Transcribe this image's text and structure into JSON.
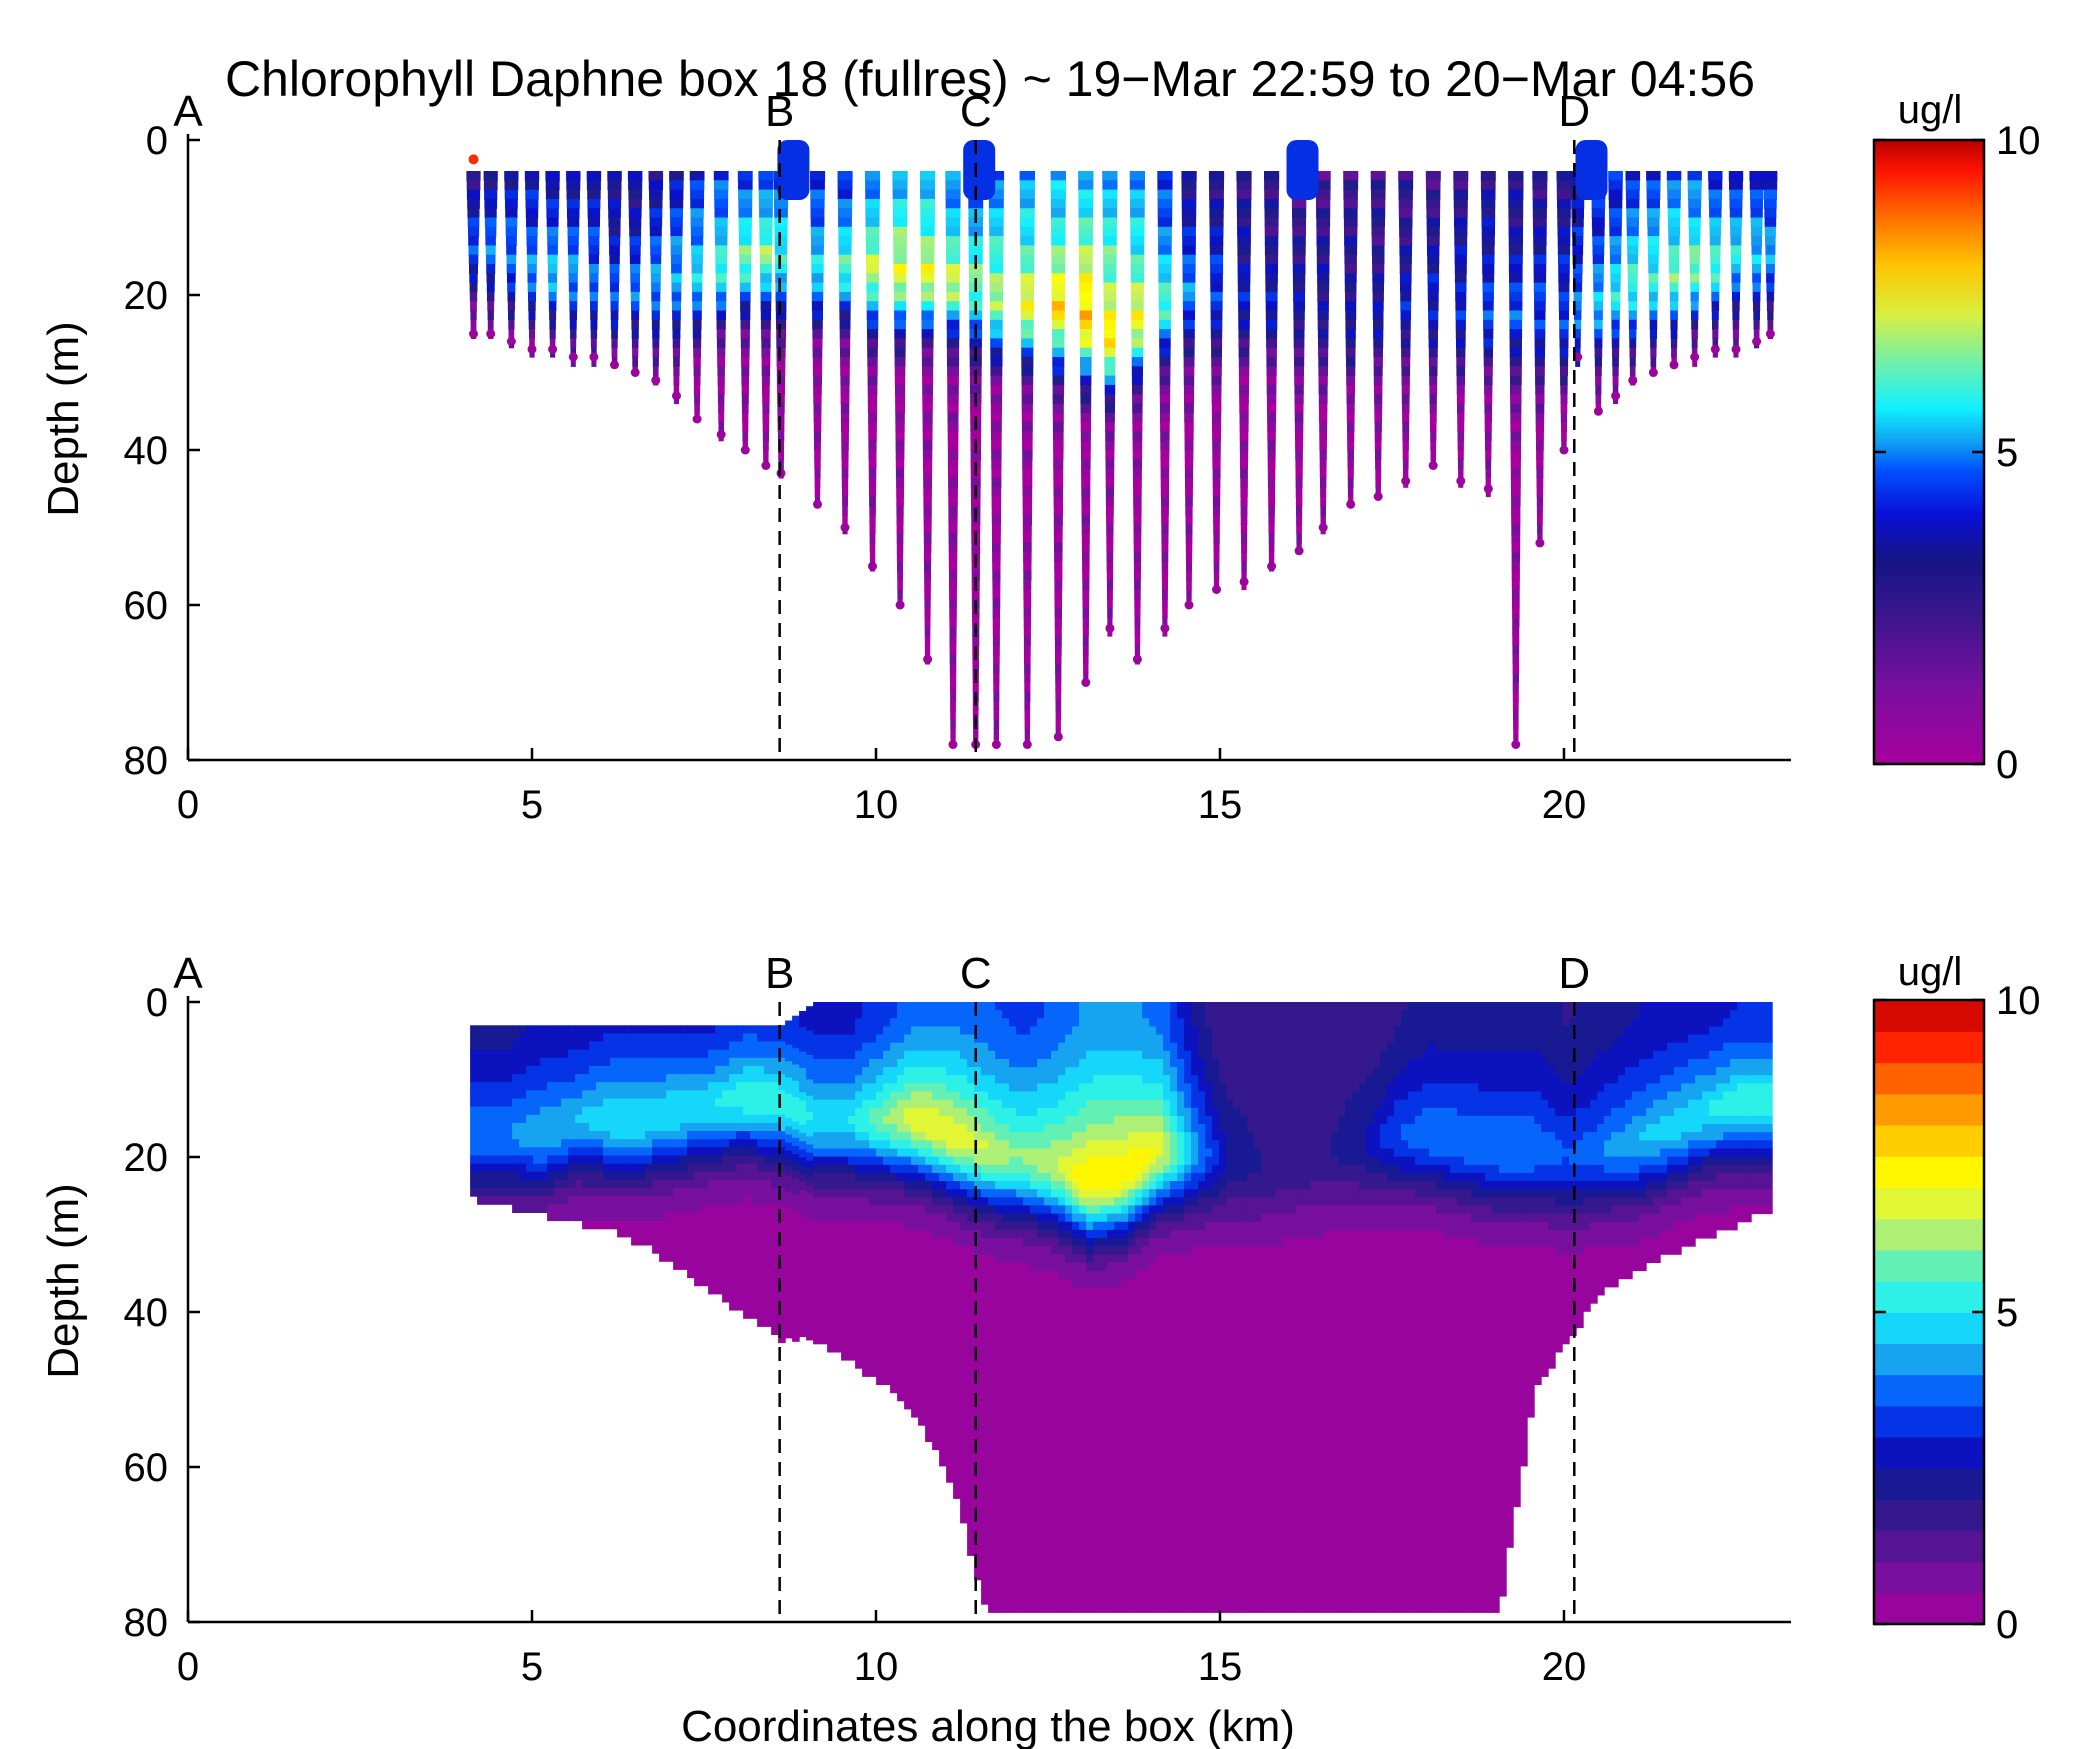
{
  "title": "Chlorophyll Daphne box 18 (fullres) ~ 19−Mar 22:59 to 20−Mar 04:56",
  "xlabel": "Coordinates along the box (km)",
  "ylabel": "Depth (m)",
  "colorbar_label": "ug/l",
  "colormap": [
    "#a8009c",
    "#7a0fa0",
    "#4a148f",
    "#1c1c8a",
    "#0a10c8",
    "#0050ff",
    "#17a8f0",
    "#12f0ff",
    "#5ef0b8",
    "#c8f060",
    "#ffff00",
    "#ffc400",
    "#ff7a00",
    "#ff1e00",
    "#c00000"
  ],
  "x_ticks": [
    "0",
    "5",
    "10",
    "15",
    "20"
  ],
  "y_ticks": [
    "0",
    "20",
    "40",
    "60",
    "80"
  ],
  "cbar_ticks": [
    "10",
    "5",
    "0"
  ],
  "markers": [
    {
      "label": "A",
      "x": 0
    },
    {
      "label": "B",
      "x": 8.6
    },
    {
      "label": "C",
      "x": 11.45
    },
    {
      "label": "D",
      "x": 20.15
    }
  ],
  "chart_data": [
    {
      "type": "scatter",
      "panel": "top",
      "description": "full-resolution glider profiles colored by chlorophyll",
      "xlim": [
        0,
        23.3
      ],
      "ylim": [
        0,
        80
      ],
      "y_reversed": true,
      "clim": [
        0,
        10
      ],
      "colorbar_ticks": [
        0,
        5,
        10
      ],
      "surface_bumps_km": [
        8.8,
        11.5,
        16.2,
        20.4
      ],
      "x_km": [
        4.15,
        4.4,
        4.7,
        5.0,
        5.3,
        5.6,
        5.9,
        6.2,
        6.5,
        6.8,
        7.1,
        7.4,
        7.75,
        8.1,
        8.4,
        8.62,
        9.15,
        9.55,
        9.95,
        10.35,
        10.75,
        11.12,
        11.45,
        11.75,
        12.2,
        12.65,
        13.05,
        13.4,
        13.8,
        14.2,
        14.55,
        14.95,
        15.35,
        15.75,
        16.15,
        16.5,
        16.9,
        17.3,
        17.7,
        18.1,
        18.5,
        18.9,
        19.3,
        19.65,
        20.0,
        20.2,
        20.5,
        20.75,
        21.0,
        21.3,
        21.6,
        21.9,
        22.2,
        22.5,
        22.8,
        23.0
      ],
      "max_depth_m": [
        25,
        25,
        26,
        27,
        27,
        28,
        28,
        29,
        30,
        31,
        33,
        36,
        38,
        40,
        42,
        43,
        47,
        50,
        55,
        60,
        67,
        78,
        78,
        78,
        78,
        77,
        70,
        63,
        67,
        63,
        60,
        58,
        57,
        55,
        53,
        50,
        47,
        46,
        44,
        42,
        44,
        45,
        78,
        52,
        40,
        28,
        35,
        33,
        31,
        30,
        29,
        28,
        27,
        27,
        26,
        25
      ],
      "chl_max_depth_m": [
        12,
        13,
        14,
        15,
        16,
        17,
        17,
        18,
        18,
        18,
        17,
        16,
        15,
        14,
        14,
        14,
        15,
        15,
        16,
        16,
        16,
        17,
        18,
        19,
        20,
        21,
        22,
        24,
        22,
        20,
        19,
        19,
        19,
        20,
        21,
        21,
        22,
        22,
        21,
        21,
        21,
        21,
        22,
        22,
        22,
        21,
        20,
        19,
        18,
        17,
        16,
        15,
        15,
        14,
        14,
        13
      ],
      "chl_max_ugl": [
        3.5,
        3.8,
        4.0,
        4.2,
        4.5,
        4.2,
        4.0,
        3.6,
        3.8,
        4.2,
        4.5,
        5.0,
        5.5,
        5.8,
        6.0,
        5.5,
        5.0,
        5.5,
        6.5,
        7.0,
        7.0,
        6.5,
        6.0,
        6.5,
        7.0,
        7.5,
        8.0,
        7.5,
        7.0,
        5.5,
        4.0,
        3.5,
        3.0,
        2.8,
        2.5,
        2.5,
        2.5,
        2.5,
        2.8,
        3.0,
        3.2,
        3.5,
        3.5,
        3.5,
        3.5,
        4.0,
        4.5,
        5.0,
        5.5,
        5.5,
        6.0,
        6.0,
        5.5,
        5.0,
        4.8,
        4.5
      ]
    },
    {
      "type": "heatmap",
      "panel": "bottom",
      "description": "gridded contour section of chlorophyll",
      "xlim": [
        0,
        23.3
      ],
      "ylim": [
        0,
        80
      ],
      "y_reversed": true,
      "clim": [
        0,
        10
      ],
      "colorbar_ticks": [
        0,
        5,
        10
      ],
      "colorbar_levels": 20,
      "x_km": [
        4.1,
        4.5,
        5,
        5.5,
        6,
        6.5,
        7,
        7.5,
        8,
        8.5,
        9,
        9.5,
        10,
        10.5,
        11,
        11.5,
        12,
        12.5,
        13,
        13.5,
        14,
        14.5,
        15,
        15.5,
        16,
        16.5,
        17,
        17.5,
        18,
        18.5,
        19,
        19.5,
        20,
        20.5,
        21,
        21.5,
        22,
        22.5,
        23
      ],
      "top_depth_m": [
        3,
        3,
        3,
        3,
        3,
        3,
        3,
        3,
        3,
        3,
        0,
        0,
        0,
        0,
        0,
        0,
        0,
        0,
        0,
        0,
        0,
        0,
        0,
        0,
        0,
        0,
        0,
        0,
        0,
        0,
        0,
        0,
        0,
        0,
        0,
        0,
        0,
        0,
        0
      ],
      "bottom_depth_m": [
        25,
        26,
        27,
        28,
        29,
        31,
        34,
        37,
        40,
        43,
        43,
        46,
        49,
        53,
        62,
        78,
        78,
        78,
        78,
        78,
        78,
        78,
        78,
        78,
        78,
        78,
        78,
        78,
        78,
        78,
        78,
        50,
        43,
        37,
        34,
        32,
        30,
        28,
        26
      ],
      "chl_max_depth_m": [
        16,
        16,
        16,
        14,
        14,
        14,
        13,
        12,
        11,
        12,
        14,
        14,
        14,
        14,
        16,
        18,
        19,
        20,
        22,
        21,
        18,
        18,
        19,
        20,
        19,
        18,
        17,
        16,
        16,
        17,
        18,
        18,
        19,
        18,
        17,
        15,
        13,
        12,
        12
      ],
      "chl_max_ugl": [
        4.0,
        4.0,
        4.5,
        4.5,
        5.0,
        5.0,
        5.0,
        5.0,
        5.5,
        5.5,
        5.0,
        5.0,
        6.0,
        7.0,
        7.0,
        6.5,
        6.0,
        6.5,
        7.5,
        7.5,
        7.0,
        4.5,
        2.5,
        2.0,
        2.0,
        2.0,
        2.5,
        3.5,
        4.0,
        4.0,
        4.0,
        4.0,
        3.5,
        4.0,
        4.5,
        4.8,
        5.0,
        5.5,
        5.5
      ]
    }
  ]
}
